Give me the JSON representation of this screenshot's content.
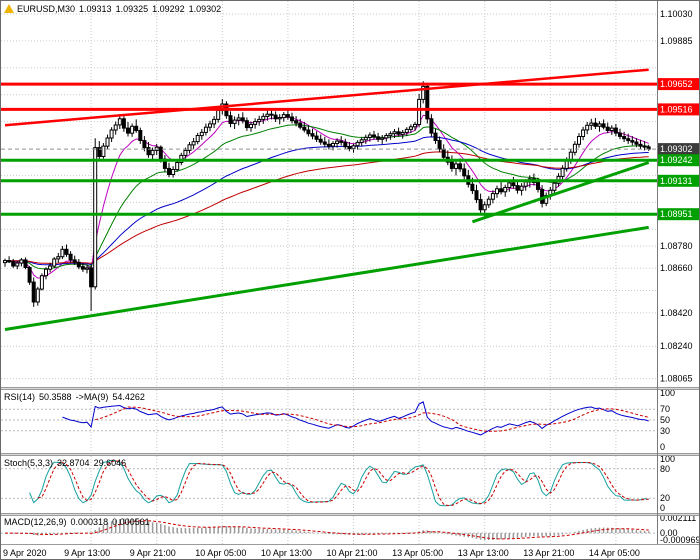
{
  "header": {
    "symbol": "EURUSD,M30",
    "open": "1.09313",
    "high": "1.09325",
    "low": "1.09292",
    "close": "1.09302"
  },
  "colors": {
    "grid": "#c9c9c9",
    "candle_up": "#ffffff",
    "candle_down": "#000000",
    "rsi_line": "#0000cc",
    "stoch_line": "#18a0a0",
    "signal_line": "#cc0000",
    "macd_hist": "#999999",
    "resistance": "#ff0000",
    "support": "#00a000",
    "bid_badge": "#3c3c3c"
  },
  "price_axis": {
    "ticks": [
      {
        "label": "1.10030",
        "price": 1.1003
      },
      {
        "label": "1.09885",
        "price": 1.09885
      },
      {
        "label": "1.08780",
        "price": 1.0878
      },
      {
        "label": "1.08660",
        "price": 1.0866
      },
      {
        "label": "1.08420",
        "price": 1.0842
      },
      {
        "label": "1.08240",
        "price": 1.0824
      },
      {
        "label": "1.08065",
        "price": 1.08065
      }
    ],
    "grid": [
      1.1003,
      1.09885,
      1.0974,
      1.09595,
      1.0945,
      1.0916,
      1.09015,
      1.0887,
      1.0878,
      1.0866,
      1.0854,
      1.0842,
      1.0824,
      1.08065
    ],
    "badges": [
      {
        "label": "1.09652",
        "price": 1.09652,
        "bg": "#ff0000"
      },
      {
        "label": "1.09516",
        "price": 1.09516,
        "bg": "#ff0000"
      },
      {
        "label": "1.09302",
        "price": 1.09302,
        "bg": "#3c3c3c"
      },
      {
        "label": "1.09242",
        "price": 1.09242,
        "bg": "#00a000"
      },
      {
        "label": "1.09131",
        "price": 1.09131,
        "bg": "#00a000"
      },
      {
        "label": "1.08951",
        "price": 1.08951,
        "bg": "#00a000"
      }
    ]
  },
  "time_axis": {
    "labels": [
      {
        "text": "9 Apr 2020",
        "bar": 0
      },
      {
        "text": "9 Apr 13:00",
        "bar": 21
      },
      {
        "text": "9 Apr 21:00",
        "bar": 37
      },
      {
        "text": "10 Apr 05:00",
        "bar": 53
      },
      {
        "text": "10 Apr 13:00",
        "bar": 69
      },
      {
        "text": "10 Apr 21:00",
        "bar": 85
      },
      {
        "text": "13 Apr 05:00",
        "bar": 101
      },
      {
        "text": "13 Apr 13:00",
        "bar": 117
      },
      {
        "text": "13 Apr 21:00",
        "bar": 133
      },
      {
        "text": "14 Apr 05:00",
        "bar": 149
      }
    ]
  },
  "indicators": {
    "rsi": {
      "label": "RSI(14)",
      "value": "50.3588",
      "ma_label": "->MA(9)",
      "ma_value": "54.4262",
      "period": 14,
      "ma_period": 9,
      "levels": [
        70,
        50,
        30
      ],
      "ticks": [
        "100",
        "70",
        "50",
        "30",
        "0"
      ]
    },
    "stoch": {
      "label": "Stoch(5,3,3)",
      "value": "32.8704",
      "signal_value": "29.6046",
      "k": 5,
      "slowing": 3,
      "d": 3,
      "levels": [
        80,
        20
      ],
      "ticks": [
        "100",
        "80",
        "20",
        "0"
      ]
    },
    "macd": {
      "label": "MACD(12,26,9)",
      "value": "0.000318",
      "signal_value": "0.000561",
      "fast": 12,
      "slow": 26,
      "signal": 9,
      "ylim": [
        -0.000969,
        0.002111
      ],
      "ticks": [
        "0.002111",
        "0.00",
        "-0.000969"
      ]
    }
  },
  "chart_data": {
    "type": "candlestick",
    "symbol": "EURUSD",
    "timeframe": "M30",
    "title": "EURUSD,M30",
    "ylim": [
      1.0802,
      1.101
    ],
    "bid_price": 1.09302,
    "moving_averages": [
      {
        "type": "ema",
        "period": 8,
        "color": "#c000c0"
      },
      {
        "type": "ema",
        "period": 24,
        "color": "#008000"
      },
      {
        "type": "ema",
        "period": 55,
        "color": "#0000c8"
      },
      {
        "type": "ema",
        "period": 90,
        "color": "#c00000"
      }
    ],
    "horizontal_lines": [
      {
        "price": 1.09652,
        "color": "#ff0000",
        "width": 3,
        "role": "resistance"
      },
      {
        "price": 1.09516,
        "color": "#ff0000",
        "width": 3,
        "role": "resistance"
      },
      {
        "price": 1.09242,
        "color": "#00a000",
        "width": 3,
        "role": "support"
      },
      {
        "price": 1.09131,
        "color": "#00a000",
        "width": 3,
        "role": "support"
      },
      {
        "price": 1.08951,
        "color": "#00a000",
        "width": 3,
        "role": "support"
      }
    ],
    "trend_lines": [
      {
        "bar1": 0,
        "price1": 1.0943,
        "bar2": 157,
        "price2": 1.0973,
        "color": "#ff0000",
        "width": 2.5,
        "role": "resistance-trend"
      },
      {
        "bar1": 0,
        "price1": 1.0833,
        "bar2": 157,
        "price2": 1.0888,
        "color": "#00a000",
        "width": 3,
        "role": "support-trend"
      },
      {
        "bar1": 114,
        "price1": 1.0891,
        "bar2": 157,
        "price2": 1.0923,
        "color": "#00a000",
        "width": 3,
        "role": "support-trend-short"
      }
    ],
    "ohlc": [
      [
        1.0869,
        1.08712,
        1.08668,
        1.08701
      ],
      [
        1.08701,
        1.08725,
        1.08688,
        1.08694
      ],
      [
        1.08694,
        1.0871,
        1.08662,
        1.08672
      ],
      [
        1.08672,
        1.08698,
        1.08655,
        1.08688
      ],
      [
        1.08688,
        1.08715,
        1.0867,
        1.08705
      ],
      [
        1.08705,
        1.08718,
        1.08655,
        1.08664
      ],
      [
        1.08664,
        1.08672,
        1.0857,
        1.08585
      ],
      [
        1.08585,
        1.0861,
        1.08452,
        1.08478
      ],
      [
        1.08478,
        1.0856,
        1.08458,
        1.08548
      ],
      [
        1.08548,
        1.08632,
        1.0854,
        1.0862
      ],
      [
        1.0862,
        1.08665,
        1.086,
        1.08655
      ],
      [
        1.08655,
        1.0869,
        1.08638,
        1.08672
      ],
      [
        1.08672,
        1.0872,
        1.0866,
        1.0871
      ],
      [
        1.0871,
        1.08742,
        1.0869,
        1.08722
      ],
      [
        1.08722,
        1.0878,
        1.0871,
        1.08762
      ],
      [
        1.08762,
        1.08788,
        1.08722,
        1.08735
      ],
      [
        1.08735,
        1.08752,
        1.0869,
        1.08705
      ],
      [
        1.08705,
        1.08728,
        1.08678,
        1.08692
      ],
      [
        1.08692,
        1.0871,
        1.08655,
        1.08668
      ],
      [
        1.08668,
        1.08688,
        1.0864,
        1.08655
      ],
      [
        1.08655,
        1.08678,
        1.08632,
        1.08662
      ],
      [
        1.08662,
        1.0868,
        1.0843,
        1.0856
      ],
      [
        1.0856,
        1.0936,
        1.08545,
        1.0931
      ],
      [
        1.0931,
        1.09345,
        1.0924,
        1.09262
      ],
      [
        1.09262,
        1.09335,
        1.0925,
        1.09318
      ],
      [
        1.09318,
        1.0938,
        1.093,
        1.09362
      ],
      [
        1.09362,
        1.0942,
        1.0934,
        1.09405
      ],
      [
        1.09405,
        1.0945,
        1.0938,
        1.09432
      ],
      [
        1.09432,
        1.0949,
        1.0941,
        1.09465
      ],
      [
        1.09465,
        1.0948,
        1.09395,
        1.09415
      ],
      [
        1.09415,
        1.09448,
        1.0937,
        1.09388
      ],
      [
        1.09388,
        1.0944,
        1.09368,
        1.09425
      ],
      [
        1.09425,
        1.09462,
        1.0939,
        1.09402
      ],
      [
        1.09402,
        1.09418,
        1.0933,
        1.09348
      ],
      [
        1.09348,
        1.09372,
        1.0929,
        1.0931
      ],
      [
        1.0931,
        1.0934,
        1.09255,
        1.09272
      ],
      [
        1.09272,
        1.0931,
        1.0924,
        1.09295
      ],
      [
        1.09295,
        1.0933,
        1.0927,
        1.09312
      ],
      [
        1.09312,
        1.09322,
        1.0923,
        1.09248
      ],
      [
        1.09248,
        1.0927,
        1.0918,
        1.09198
      ],
      [
        1.09198,
        1.09228,
        1.0915,
        1.09165
      ],
      [
        1.09165,
        1.0921,
        1.09148,
        1.09192
      ],
      [
        1.09192,
        1.09245,
        1.0918,
        1.0923
      ],
      [
        1.0923,
        1.09282,
        1.09215,
        1.09268
      ],
      [
        1.09268,
        1.0931,
        1.0925,
        1.09295
      ],
      [
        1.09295,
        1.0934,
        1.09278,
        1.09325
      ],
      [
        1.09325,
        1.09362,
        1.093,
        1.09342
      ],
      [
        1.09342,
        1.0939,
        1.09328,
        1.09375
      ],
      [
        1.09375,
        1.0941,
        1.09352,
        1.09392
      ],
      [
        1.09392,
        1.0944,
        1.09375,
        1.0942
      ],
      [
        1.0942,
        1.09455,
        1.09398,
        1.09438
      ],
      [
        1.09438,
        1.0948,
        1.09415,
        1.09462
      ],
      [
        1.09462,
        1.0953,
        1.09445,
        1.0951
      ],
      [
        1.0951,
        1.09572,
        1.09488,
        1.09545
      ],
      [
        1.09545,
        1.0956,
        1.09465,
        1.09482
      ],
      [
        1.09482,
        1.09505,
        1.0942,
        1.0944
      ],
      [
        1.0944,
        1.09478,
        1.0941,
        1.09458
      ],
      [
        1.09458,
        1.09492,
        1.0943,
        1.0947
      ],
      [
        1.0947,
        1.095,
        1.0944,
        1.09455
      ],
      [
        1.09455,
        1.09472,
        1.094,
        1.09418
      ],
      [
        1.09418,
        1.0945,
        1.09395,
        1.09435
      ],
      [
        1.09435,
        1.09468,
        1.09412,
        1.0945
      ],
      [
        1.0945,
        1.09482,
        1.09428,
        1.09462
      ],
      [
        1.09462,
        1.09495,
        1.09438,
        1.09478
      ],
      [
        1.09478,
        1.09512,
        1.09455,
        1.0949
      ],
      [
        1.0949,
        1.0952,
        1.09462,
        1.09485
      ],
      [
        1.09485,
        1.09505,
        1.09448,
        1.09465
      ],
      [
        1.09465,
        1.0949,
        1.09435,
        1.09472
      ],
      [
        1.09472,
        1.09502,
        1.0945,
        1.09488
      ],
      [
        1.09488,
        1.09515,
        1.0946,
        1.09475
      ],
      [
        1.09475,
        1.09498,
        1.0944,
        1.09455
      ],
      [
        1.09455,
        1.0948,
        1.09425,
        1.09442
      ],
      [
        1.09442,
        1.09465,
        1.09408,
        1.0942
      ],
      [
        1.0942,
        1.09448,
        1.09392,
        1.09405
      ],
      [
        1.09405,
        1.0943,
        1.0937,
        1.09385
      ],
      [
        1.09385,
        1.09412,
        1.09355,
        1.09372
      ],
      [
        1.09372,
        1.09398,
        1.0934,
        1.09355
      ],
      [
        1.09355,
        1.0938,
        1.09325,
        1.0934
      ],
      [
        1.0934,
        1.09368,
        1.09312,
        1.09328
      ],
      [
        1.09328,
        1.09355,
        1.093,
        1.09318
      ],
      [
        1.09318,
        1.09345,
        1.09295,
        1.09332
      ],
      [
        1.09332,
        1.0936,
        1.0931,
        1.09345
      ],
      [
        1.09345,
        1.09372,
        1.09322,
        1.09338
      ],
      [
        1.09338,
        1.09358,
        1.09302,
        1.09315
      ],
      [
        1.09315,
        1.0934,
        1.0929,
        1.09305
      ],
      [
        1.09305,
        1.09332,
        1.09282,
        1.0932
      ],
      [
        1.0932,
        1.0935,
        1.093,
        1.09338
      ],
      [
        1.09338,
        1.09365,
        1.09318,
        1.09352
      ],
      [
        1.09352,
        1.0938,
        1.0933,
        1.09365
      ],
      [
        1.09365,
        1.09392,
        1.09342,
        1.09378
      ],
      [
        1.09378,
        1.094,
        1.09352,
        1.09368
      ],
      [
        1.09368,
        1.0939,
        1.0934,
        1.09355
      ],
      [
        1.09355,
        1.09378,
        1.0933,
        1.09362
      ],
      [
        1.09362,
        1.09388,
        1.09342,
        1.09375
      ],
      [
        1.09375,
        1.09398,
        1.09352,
        1.09385
      ],
      [
        1.09385,
        1.0941,
        1.09362,
        1.09395
      ],
      [
        1.09395,
        1.09418,
        1.0937,
        1.09382
      ],
      [
        1.09382,
        1.09405,
        1.09358,
        1.09392
      ],
      [
        1.09392,
        1.0942,
        1.09372,
        1.09408
      ],
      [
        1.09408,
        1.09435,
        1.09388,
        1.09422
      ],
      [
        1.09422,
        1.09448,
        1.094,
        1.09435
      ],
      [
        1.09435,
        1.096,
        1.0942,
        1.0957
      ],
      [
        1.0957,
        1.09668,
        1.09548,
        1.0964
      ],
      [
        1.0964,
        1.09655,
        1.0944,
        1.09465
      ],
      [
        1.09465,
        1.0949,
        1.09368,
        1.09388
      ],
      [
        1.09388,
        1.09412,
        1.0933,
        1.09348
      ],
      [
        1.09348,
        1.0937,
        1.09285,
        1.09302
      ],
      [
        1.09302,
        1.09328,
        1.0924,
        1.09258
      ],
      [
        1.09258,
        1.09295,
        1.09215,
        1.09232
      ],
      [
        1.09232,
        1.09268,
        1.0918,
        1.09198
      ],
      [
        1.09198,
        1.0924,
        1.0916,
        1.09222
      ],
      [
        1.09222,
        1.09252,
        1.09178,
        1.09195
      ],
      [
        1.09195,
        1.09225,
        1.0914,
        1.09158
      ],
      [
        1.09158,
        1.0919,
        1.09095,
        1.09112
      ],
      [
        1.09112,
        1.09148,
        1.0906,
        1.09078
      ],
      [
        1.09078,
        1.0911,
        1.09012,
        1.0903
      ],
      [
        1.0903,
        1.09062,
        1.08952,
        1.08975
      ],
      [
        1.08975,
        1.0902,
        1.0894,
        1.09002
      ],
      [
        1.09002,
        1.09048,
        1.08985,
        1.09032
      ],
      [
        1.09032,
        1.0908,
        1.0901,
        1.09062
      ],
      [
        1.09062,
        1.09105,
        1.0904,
        1.09088
      ],
      [
        1.09088,
        1.09125,
        1.09058,
        1.09072
      ],
      [
        1.09072,
        1.0911,
        1.09045,
        1.09095
      ],
      [
        1.09095,
        1.09138,
        1.09072,
        1.0912
      ],
      [
        1.0912,
        1.09152,
        1.09088,
        1.09105
      ],
      [
        1.09105,
        1.0913,
        1.09062,
        1.0908
      ],
      [
        1.0908,
        1.09118,
        1.09052,
        1.09102
      ],
      [
        1.09102,
        1.0914,
        1.09078,
        1.09125
      ],
      [
        1.09125,
        1.0916,
        1.09095,
        1.09142
      ],
      [
        1.09142,
        1.0917,
        1.09105,
        1.09122
      ],
      [
        1.09122,
        1.09148,
        1.09068,
        1.09085
      ],
      [
        1.09085,
        1.09108,
        1.08988,
        1.0901
      ],
      [
        1.0901,
        1.09068,
        1.08995,
        1.09052
      ],
      [
        1.09052,
        1.09098,
        1.0903,
        1.0908
      ],
      [
        1.0908,
        1.09135,
        1.09062,
        1.09118
      ],
      [
        1.09118,
        1.09172,
        1.091,
        1.09155
      ],
      [
        1.09155,
        1.09215,
        1.09138,
        1.09198
      ],
      [
        1.09198,
        1.09258,
        1.0918,
        1.0924
      ],
      [
        1.0924,
        1.09302,
        1.09222,
        1.09285
      ],
      [
        1.09285,
        1.09345,
        1.09268,
        1.09328
      ],
      [
        1.09328,
        1.09388,
        1.0931,
        1.0937
      ],
      [
        1.0937,
        1.09422,
        1.0935,
        1.09405
      ],
      [
        1.09405,
        1.09448,
        1.09382,
        1.0943
      ],
      [
        1.0943,
        1.09465,
        1.09405,
        1.09442
      ],
      [
        1.09442,
        1.0947,
        1.0941,
        1.09425
      ],
      [
        1.09425,
        1.09452,
        1.09395,
        1.09438
      ],
      [
        1.09438,
        1.09462,
        1.09408,
        1.0942
      ],
      [
        1.0942,
        1.09445,
        1.09388,
        1.09402
      ],
      [
        1.09402,
        1.0943,
        1.09378,
        1.09415
      ],
      [
        1.09415,
        1.09438,
        1.09372,
        1.09388
      ],
      [
        1.09388,
        1.09412,
        1.09355,
        1.0937
      ],
      [
        1.0937,
        1.09395,
        1.0934,
        1.09358
      ],
      [
        1.09358,
        1.09385,
        1.0933,
        1.09348
      ],
      [
        1.09348,
        1.09372,
        1.09322,
        1.0934
      ],
      [
        1.0934,
        1.09362,
        1.09312,
        1.09328
      ],
      [
        1.09328,
        1.09352,
        1.093,
        1.09318
      ],
      [
        1.09318,
        1.09345,
        1.09295,
        1.09315
      ],
      [
        1.09313,
        1.09325,
        1.09292,
        1.09302
      ]
    ]
  }
}
